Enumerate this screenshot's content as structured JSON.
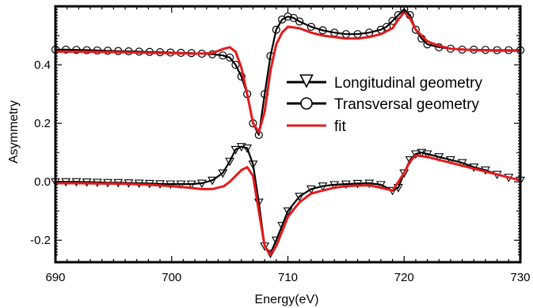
{
  "chart_data": {
    "type": "line",
    "title": "",
    "xlabel": "Energy(eV)",
    "ylabel": "Asymmetry",
    "xlim": [
      690,
      730
    ],
    "ylim": [
      -0.275,
      0.6
    ],
    "x_ticks": [
      690,
      700,
      710,
      720,
      730
    ],
    "x_tick_labels": [
      "690",
      "700",
      "710",
      "720",
      "730"
    ],
    "y_ticks": [
      -0.2,
      0.0,
      0.2,
      0.4
    ],
    "y_tick_labels": [
      "-0.2",
      "0.0",
      "0.2",
      "0.4"
    ],
    "grid": false,
    "legend_position": "center-right",
    "series": [
      {
        "name": "Longitudinal geometry",
        "color": "#000000",
        "marker": "triangle-down",
        "x": [
          690.0,
          690.9,
          691.8,
          692.7,
          693.6,
          694.5,
          695.4,
          696.3,
          697.2,
          698.1,
          699.0,
          699.9,
          700.8,
          701.7,
          702.6,
          703.5,
          704.4,
          705.0,
          705.5,
          706.0,
          706.5,
          707.0,
          707.5,
          708.0,
          708.5,
          709.0,
          709.5,
          710.0,
          711.0,
          712.0,
          713.0,
          714.0,
          715.0,
          716.0,
          717.0,
          718.0,
          719.0,
          719.5,
          720.0,
          720.5,
          721.0,
          721.5,
          722.0,
          723.0,
          724.0,
          725.0,
          726.0,
          727.0,
          728.0,
          729.0,
          730.0
        ],
        "y": [
          0.0,
          0.0,
          0.0,
          -0.001,
          -0.002,
          -0.003,
          -0.003,
          -0.004,
          -0.005,
          -0.006,
          -0.007,
          -0.008,
          -0.008,
          -0.008,
          -0.005,
          0.005,
          0.03,
          0.07,
          0.11,
          0.12,
          0.115,
          0.06,
          -0.07,
          -0.22,
          -0.245,
          -0.2,
          -0.15,
          -0.1,
          -0.05,
          -0.025,
          -0.015,
          -0.01,
          -0.008,
          -0.006,
          -0.005,
          -0.01,
          -0.03,
          -0.02,
          0.03,
          0.075,
          0.095,
          0.1,
          0.095,
          0.085,
          0.075,
          0.065,
          0.05,
          0.04,
          0.025,
          0.015,
          0.005
        ]
      },
      {
        "name": "Transversal geometry",
        "color": "#000000",
        "marker": "circle",
        "x": [
          690.0,
          690.9,
          691.8,
          692.7,
          693.6,
          694.5,
          695.4,
          696.3,
          697.2,
          698.1,
          699.0,
          699.9,
          700.8,
          701.7,
          702.6,
          703.5,
          704.4,
          705.0,
          705.5,
          706.0,
          706.5,
          707.0,
          707.5,
          708.0,
          708.5,
          709.0,
          709.5,
          710.0,
          710.5,
          711.0,
          712.0,
          713.0,
          714.0,
          715.0,
          716.0,
          717.0,
          718.0,
          718.5,
          719.0,
          719.5,
          720.0,
          720.5,
          721.0,
          721.5,
          722.0,
          723.0,
          724.0,
          725.0,
          726.0,
          727.0,
          728.0,
          729.0,
          730.0
        ],
        "y": [
          0.452,
          0.452,
          0.451,
          0.45,
          0.449,
          0.448,
          0.447,
          0.446,
          0.445,
          0.444,
          0.443,
          0.442,
          0.441,
          0.44,
          0.438,
          0.436,
          0.432,
          0.425,
          0.4,
          0.36,
          0.3,
          0.2,
          0.16,
          0.3,
          0.43,
          0.52,
          0.555,
          0.565,
          0.56,
          0.548,
          0.53,
          0.518,
          0.51,
          0.505,
          0.505,
          0.51,
          0.52,
          0.53,
          0.55,
          0.57,
          0.59,
          0.57,
          0.52,
          0.49,
          0.47,
          0.46,
          0.455,
          0.452,
          0.452,
          0.451,
          0.45,
          0.45,
          0.45
        ]
      },
      {
        "name": "fit",
        "color": "#e41a1c",
        "marker": "none",
        "x": [
          690.0,
          692.0,
          694.0,
          696.0,
          698.0,
          700.0,
          702.0,
          703.5,
          704.5,
          705.0,
          705.5,
          706.0,
          706.5,
          707.0,
          707.5,
          708.0,
          708.5,
          709.0,
          709.5,
          710.0,
          711.0,
          712.0,
          713.0,
          714.0,
          715.0,
          716.0,
          717.0,
          718.0,
          719.0,
          719.5,
          720.0,
          720.5,
          721.0,
          722.0,
          723.0,
          724.0,
          726.0,
          728.0,
          730.0
        ],
        "y": [
          0.445,
          0.445,
          0.444,
          0.443,
          0.441,
          0.44,
          0.438,
          0.44,
          0.455,
          0.46,
          0.445,
          0.39,
          0.3,
          0.2,
          0.17,
          0.24,
          0.38,
          0.47,
          0.51,
          0.53,
          0.525,
          0.51,
          0.5,
          0.495,
          0.49,
          0.49,
          0.495,
          0.505,
          0.525,
          0.555,
          0.58,
          0.56,
          0.52,
          0.48,
          0.465,
          0.455,
          0.45,
          0.448,
          0.448
        ]
      },
      {
        "name": "fit",
        "color": "#e41a1c",
        "marker": "none",
        "x": [
          690.0,
          692.0,
          694.0,
          696.0,
          698.0,
          700.0,
          701.5,
          702.5,
          703.5,
          704.5,
          705.0,
          705.5,
          706.0,
          706.5,
          707.0,
          707.5,
          708.0,
          708.5,
          709.0,
          709.5,
          710.0,
          711.0,
          712.0,
          713.0,
          714.0,
          715.0,
          716.0,
          717.0,
          718.0,
          719.0,
          720.0,
          720.5,
          721.0,
          722.0,
          723.0,
          724.0,
          726.0,
          728.0,
          730.0
        ],
        "y": [
          -0.005,
          -0.005,
          -0.006,
          -0.007,
          -0.01,
          -0.015,
          -0.02,
          -0.025,
          -0.025,
          -0.015,
          0.0,
          0.02,
          0.04,
          0.05,
          0.02,
          -0.1,
          -0.22,
          -0.25,
          -0.22,
          -0.17,
          -0.12,
          -0.07,
          -0.04,
          -0.03,
          -0.02,
          -0.015,
          -0.013,
          -0.012,
          -0.02,
          -0.03,
          0.03,
          0.07,
          0.09,
          0.085,
          0.075,
          0.065,
          0.045,
          0.025,
          0.005
        ]
      }
    ],
    "legend": [
      {
        "label": "Longitudinal geometry",
        "marker": "triangle-down",
        "color": "#000000"
      },
      {
        "label": "Transversal geometry",
        "marker": "circle",
        "color": "#000000"
      },
      {
        "label": "fit",
        "marker": "none",
        "color": "#e41a1c"
      }
    ]
  }
}
